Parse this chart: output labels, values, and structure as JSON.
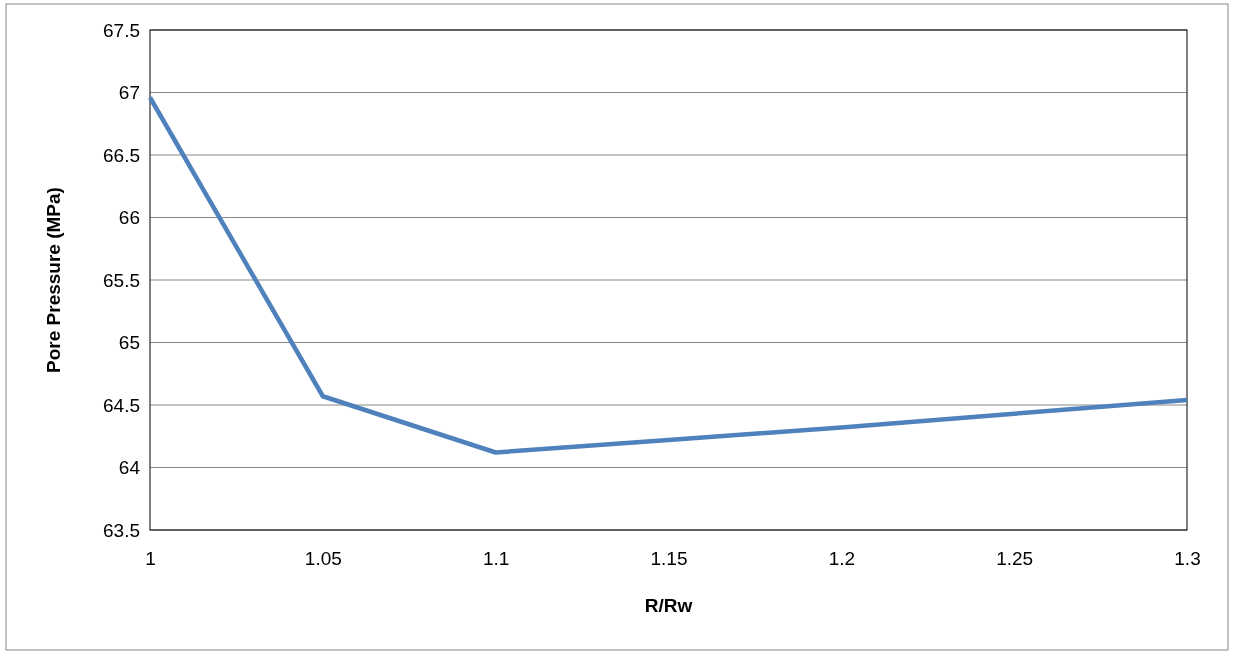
{
  "chart_data": {
    "type": "line",
    "xlabel": "R/Rw",
    "ylabel": "Pore Pressure (MPa)",
    "x": [
      1,
      1.05,
      1.1,
      1.15,
      1.2,
      1.25,
      1.3
    ],
    "series": [
      {
        "color": "#4f81bd",
        "values": [
          66.96,
          64.57,
          64.12,
          64.22,
          64.32,
          64.43,
          64.54
        ]
      }
    ],
    "xlim": [
      1,
      1.3
    ],
    "xticks": [
      1,
      1.05,
      1.1,
      1.15,
      1.2,
      1.25,
      1.3
    ],
    "ylim": [
      63.5,
      67.5
    ],
    "yticks": [
      63.5,
      64,
      64.5,
      65,
      65.5,
      66,
      66.5,
      67,
      67.5
    ],
    "grid": "y",
    "marker": "none",
    "line_style": "solid"
  }
}
